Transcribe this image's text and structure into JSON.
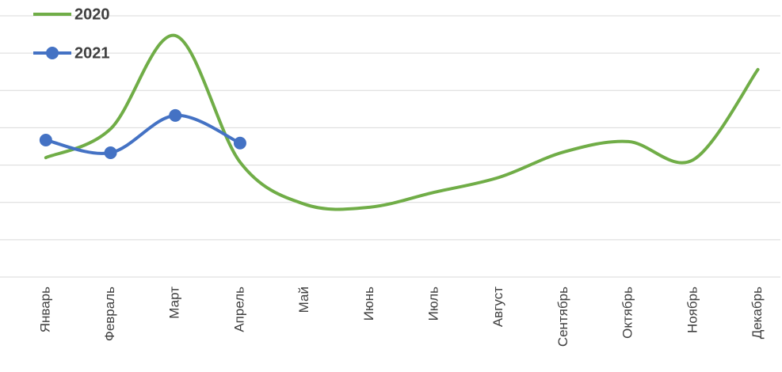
{
  "chart_data": {
    "type": "line",
    "categories": [
      "Январь",
      "Февраль",
      "Март",
      "Апрель",
      "Май",
      "Июнь",
      "Июль",
      "Август",
      "Сентябрь",
      "Октябрь",
      "Ноябрь",
      "Декабрь"
    ],
    "series": [
      {
        "name": "2020",
        "color": "#70ad47",
        "marker": false,
        "values": [
          3.2,
          3.97,
          6.47,
          3.08,
          1.95,
          1.87,
          2.27,
          2.67,
          3.35,
          3.63,
          3.14,
          5.56
        ]
      },
      {
        "name": "2021",
        "color": "#4472c4",
        "marker": true,
        "values": [
          3.67,
          3.33,
          4.33,
          3.59,
          null,
          null,
          null,
          null,
          null,
          null,
          null,
          null
        ]
      }
    ],
    "ylim": [
      0,
      7
    ],
    "yticks": [
      0,
      1,
      2,
      3,
      4,
      5,
      6,
      7
    ],
    "grid": true,
    "smooth": true,
    "legend": "top-left"
  }
}
